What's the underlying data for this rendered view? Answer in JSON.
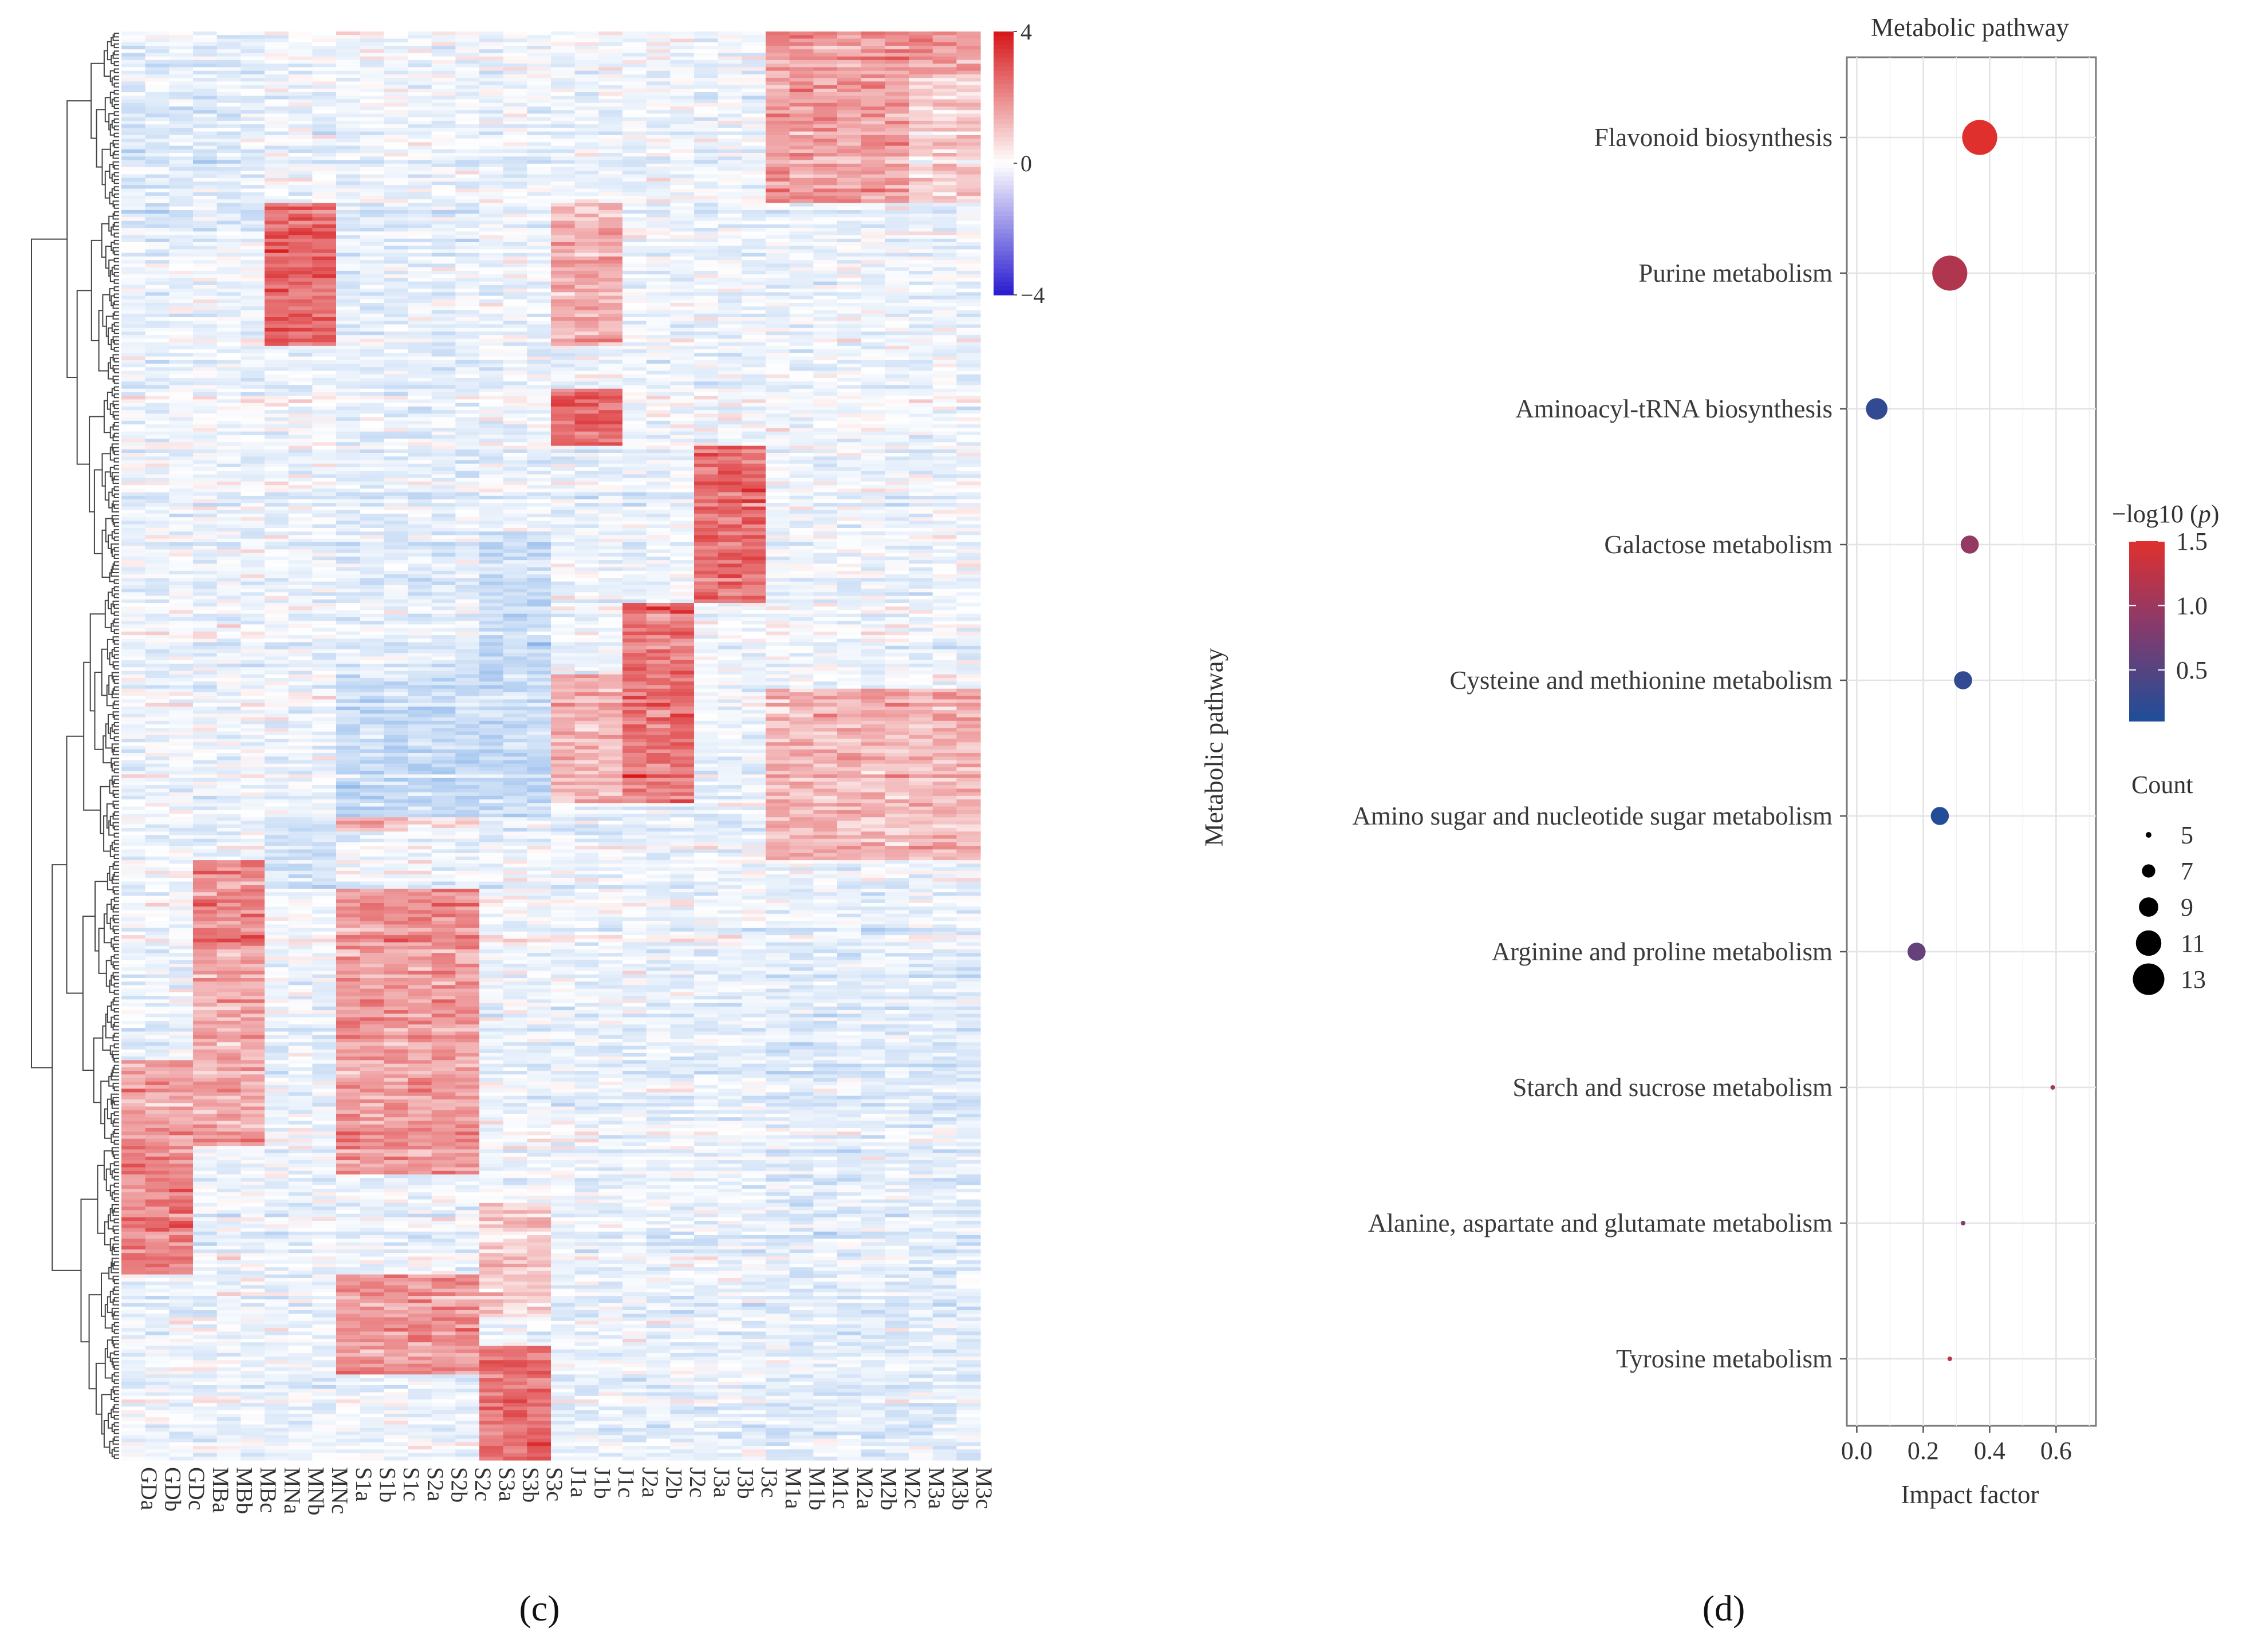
{
  "panel_labels": {
    "left": "(c)",
    "right": "(d)"
  },
  "chart_data": [
    {
      "type": "heatmap",
      "title": "",
      "columns": [
        "GDa",
        "GDb",
        "GDc",
        "MBa",
        "MBb",
        "MBc",
        "MNa",
        "MNb",
        "MNc",
        "S1a",
        "S1b",
        "S1c",
        "S2a",
        "S2b",
        "S2c",
        "S3a",
        "S3b",
        "S3c",
        "J1a",
        "J1b",
        "J1c",
        "J2a",
        "J2b",
        "J2c",
        "J3a",
        "J3b",
        "J3c",
        "M1a",
        "M1b",
        "M1c",
        "M2a",
        "M2b",
        "M2c",
        "M3a",
        "M3b",
        "M3c"
      ],
      "row_count": 400,
      "value_range": [
        -4,
        4
      ],
      "colorbar": {
        "ticks": [
          4,
          0,
          -4
        ],
        "tick_labels": [
          "4",
          "0",
          "−4"
        ],
        "colors": {
          "high": "#d7191c",
          "mid": "#ffffff",
          "low": "#2c1fd0"
        }
      },
      "row_dendrogram": true,
      "note": "Row-clustered z-score heatmap; cell values are not individually labelled."
    },
    {
      "type": "scatter",
      "title": "Metabolic pathway",
      "xlabel": "Impact factor",
      "ylabel": "Metabolic pathway",
      "xlim": [
        -0.03,
        0.72
      ],
      "xticks": [
        0.0,
        0.2,
        0.4,
        0.6
      ],
      "xtick_labels": [
        "0.0",
        "0.2",
        "0.4",
        "0.6"
      ],
      "pathways": [
        {
          "name": "Flavonoid biosynthesis",
          "impact": 0.37,
          "neglog10p": 1.5,
          "count": 13
        },
        {
          "name": "Purine metabolism",
          "impact": 0.28,
          "neglog10p": 1.15,
          "count": 13
        },
        {
          "name": "Aminoacyl-tRNA biosynthesis",
          "impact": 0.06,
          "neglog10p": 0.25,
          "count": 9
        },
        {
          "name": "Galactose metabolism",
          "impact": 0.34,
          "neglog10p": 0.95,
          "count": 8
        },
        {
          "name": "Cysteine and methionine metabolism",
          "impact": 0.32,
          "neglog10p": 0.25,
          "count": 8
        },
        {
          "name": "Amino sugar and nucleotide sugar metabolism",
          "impact": 0.25,
          "neglog10p": 0.15,
          "count": 8
        },
        {
          "name": "Arginine and proline metabolism",
          "impact": 0.18,
          "neglog10p": 0.6,
          "count": 8
        },
        {
          "name": "Starch and sucrose metabolism",
          "impact": 0.59,
          "neglog10p": 1.0,
          "count": 4
        },
        {
          "name": "Alanine, aspartate and glutamate metabolism",
          "impact": 0.32,
          "neglog10p": 0.85,
          "count": 4
        },
        {
          "name": "Tyrosine metabolism",
          "impact": 0.28,
          "neglog10p": 1.2,
          "count": 4
        }
      ],
      "color_legend": {
        "title": "−log10 (",
        "title_symbol": "p",
        "title_close": ")",
        "range": [
          0.1,
          1.5
        ],
        "ticks": [
          1.5,
          1.0,
          0.5
        ],
        "tick_labels": [
          "1.5",
          "1.0",
          "0.5"
        ],
        "low_color": "#1d4e9a",
        "high_color": "#e0302d"
      },
      "size_legend": {
        "title": "Count",
        "values": [
          5,
          7,
          9,
          11,
          13
        ],
        "labels": [
          "5",
          "7",
          "9",
          "11",
          "13"
        ]
      }
    }
  ]
}
